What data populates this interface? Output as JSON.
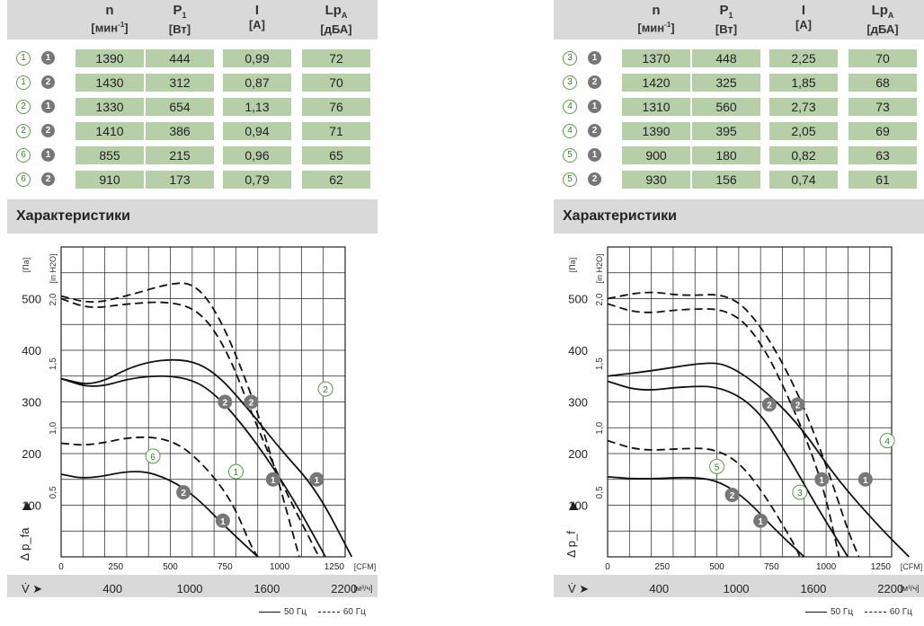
{
  "left": {
    "headers": [
      {
        "main": "n",
        "sub": "",
        "unit": "[мин",
        "unit_sup": "-1",
        "unit_end": "]"
      },
      {
        "main": "P",
        "sub": "1",
        "unit": "[Вт]",
        "unit_sup": "",
        "unit_end": ""
      },
      {
        "main": "I",
        "sub": "",
        "unit": "[A]",
        "unit_sup": "",
        "unit_end": ""
      },
      {
        "main": "Lp",
        "sub": "A",
        "unit": "[дБА]",
        "unit_sup": "",
        "unit_end": ""
      }
    ],
    "rows": [
      {
        "curve": "1",
        "mode": "1",
        "n": "1390",
        "p": "444",
        "i": "0,99",
        "lp": "72"
      },
      {
        "curve": "1",
        "mode": "2",
        "n": "1430",
        "p": "312",
        "i": "0,87",
        "lp": "70"
      },
      {
        "curve": "2",
        "mode": "1",
        "n": "1330",
        "p": "654",
        "i": "1,13",
        "lp": "76"
      },
      {
        "curve": "2",
        "mode": "2",
        "n": "1410",
        "p": "386",
        "i": "0,94",
        "lp": "71"
      },
      {
        "curve": "6",
        "mode": "1",
        "n": "855",
        "p": "215",
        "i": "0,96",
        "lp": "65"
      },
      {
        "curve": "6",
        "mode": "2",
        "n": "910",
        "p": "173",
        "i": "0,79",
        "lp": "62"
      }
    ],
    "section_title": "Характеристики"
  },
  "right": {
    "headers": [
      {
        "main": "n",
        "sub": "",
        "unit": "[мин",
        "unit_sup": "-1",
        "unit_end": "]"
      },
      {
        "main": "P",
        "sub": "1",
        "unit": "[Вт]",
        "unit_sup": "",
        "unit_end": ""
      },
      {
        "main": "I",
        "sub": "",
        "unit": "[A]",
        "unit_sup": "",
        "unit_end": ""
      },
      {
        "main": "Lp",
        "sub": "A",
        "unit": "[дБА]",
        "unit_sup": "",
        "unit_end": ""
      }
    ],
    "rows": [
      {
        "curve": "3",
        "mode": "1",
        "n": "1370",
        "p": "448",
        "i": "2,25",
        "lp": "70"
      },
      {
        "curve": "3",
        "mode": "2",
        "n": "1420",
        "p": "325",
        "i": "1,85",
        "lp": "68"
      },
      {
        "curve": "4",
        "mode": "1",
        "n": "1310",
        "p": "560",
        "i": "2,73",
        "lp": "73"
      },
      {
        "curve": "4",
        "mode": "2",
        "n": "1390",
        "p": "395",
        "i": "2,05",
        "lp": "69"
      },
      {
        "curve": "5",
        "mode": "1",
        "n": "900",
        "p": "180",
        "i": "0,82",
        "lp": "63"
      },
      {
        "curve": "5",
        "mode": "2",
        "n": "930",
        "p": "156",
        "i": "0,74",
        "lp": "61"
      }
    ],
    "section_title": "Характеристики"
  },
  "chart_data": [
    {
      "type": "line",
      "title": "",
      "ylabel": "Δ p_fa",
      "y_units": [
        "[Па]",
        "[in H2O]"
      ],
      "ylim": [
        0,
        600
      ],
      "y_ticks": [
        "100",
        "200",
        "300",
        "400",
        "500"
      ],
      "y2_ticks": [
        "0,5",
        "1,0",
        "1,5",
        "2,0"
      ],
      "x_units": "[CFM]",
      "xlim": [
        0,
        1300
      ],
      "x_ticks": [
        "0",
        "250",
        "500",
        "750",
        "1000",
        "1250"
      ],
      "x2_label": "V̇ ➤",
      "x2_units": "[м³/ч]",
      "x2_ticks": [
        "400",
        "1000",
        "1600",
        "2200"
      ],
      "legend": {
        "solid": "50 Гц",
        "dashed": "60 Гц",
        "placement": "bottom-right"
      },
      "series": [
        {
          "curve": "1",
          "mode": "1",
          "dash": false,
          "points": [
            [
              0,
              345
            ],
            [
              150,
              330
            ],
            [
              350,
              375
            ],
            [
              560,
              385
            ],
            [
              700,
              360
            ],
            [
              850,
              290
            ],
            [
              1000,
              210
            ],
            [
              1170,
              130
            ],
            [
              1330,
              0
            ]
          ]
        },
        {
          "curve": "1",
          "mode": "2",
          "dash": false,
          "points": [
            [
              0,
              345
            ],
            [
              150,
              325
            ],
            [
              350,
              350
            ],
            [
              560,
              350
            ],
            [
              700,
              320
            ],
            [
              880,
              230
            ],
            [
              1060,
              115
            ],
            [
              1210,
              0
            ]
          ]
        },
        {
          "curve": "2",
          "mode": "1",
          "dash": true,
          "points": [
            [
              0,
              500
            ],
            [
              130,
              480
            ],
            [
              300,
              490
            ],
            [
              500,
              495
            ],
            [
              640,
              475
            ],
            [
              760,
              400
            ],
            [
              880,
              270
            ],
            [
              1000,
              150
            ],
            [
              1180,
              0
            ]
          ]
        },
        {
          "curve": "2",
          "mode": "2",
          "dash": true,
          "points": [
            [
              0,
              505
            ],
            [
              140,
              490
            ],
            [
              300,
              505
            ],
            [
              500,
              530
            ],
            [
              610,
              530
            ],
            [
              720,
              470
            ],
            [
              850,
              340
            ],
            [
              960,
              200
            ],
            [
              1090,
              0
            ]
          ]
        },
        {
          "curve": "6",
          "mode": "1",
          "dash": false,
          "points": [
            [
              0,
              160
            ],
            [
              120,
              150
            ],
            [
              350,
              170
            ],
            [
              500,
              150
            ],
            [
              620,
              115
            ],
            [
              760,
              55
            ],
            [
              900,
              0
            ]
          ]
        },
        {
          "curve": "6",
          "mode": "2",
          "dash": true,
          "points": [
            [
              0,
              220
            ],
            [
              130,
              215
            ],
            [
              350,
              235
            ],
            [
              520,
              225
            ],
            [
              650,
              180
            ],
            [
              780,
              110
            ],
            [
              870,
              20
            ],
            [
              900,
              0
            ]
          ]
        }
      ],
      "markers": [
        {
          "kind": "mode",
          "label": "2",
          "x": 750,
          "y": 300
        },
        {
          "kind": "mode",
          "label": "2",
          "x": 870,
          "y": 300
        },
        {
          "kind": "mode",
          "label": "1",
          "x": 970,
          "y": 150
        },
        {
          "kind": "mode",
          "label": "1",
          "x": 1170,
          "y": 150
        },
        {
          "kind": "mode",
          "label": "2",
          "x": 560,
          "y": 125
        },
        {
          "kind": "mode",
          "label": "1",
          "x": 740,
          "y": 70
        },
        {
          "kind": "curve",
          "label": "2",
          "x": 1210,
          "y": 325
        },
        {
          "kind": "curve",
          "label": "1",
          "x": 800,
          "y": 165
        },
        {
          "kind": "curve",
          "label": "6",
          "x": 420,
          "y": 195
        }
      ]
    },
    {
      "type": "line",
      "title": "",
      "ylabel": "Δ p_f",
      "y_units": [
        "[Па]",
        "[in H2O]"
      ],
      "ylim": [
        0,
        600
      ],
      "y_ticks": [
        "100",
        "200",
        "300",
        "400",
        "500"
      ],
      "y2_ticks": [
        "0,5",
        "1,0",
        "1,5",
        "2,0"
      ],
      "x_units": "[CFM]",
      "xlim": [
        0,
        1300
      ],
      "x_ticks": [
        "0",
        "250",
        "500",
        "750",
        "1000",
        "1250"
      ],
      "x2_label": "V̇ ➤",
      "x2_units": "[м³/ч]",
      "x2_ticks": [
        "400",
        "1000",
        "1600",
        "2200"
      ],
      "legend": {
        "solid": "50 Гц",
        "dashed": "60 Гц",
        "placement": "bottom-right"
      },
      "series": [
        {
          "curve": "3",
          "mode": "1",
          "dash": false,
          "points": [
            [
              0,
              350
            ],
            [
              200,
              360
            ],
            [
              420,
              375
            ],
            [
              540,
              375
            ],
            [
              700,
              330
            ],
            [
              880,
              255
            ],
            [
              1050,
              150
            ],
            [
              1250,
              55
            ],
            [
              1380,
              0
            ]
          ]
        },
        {
          "curve": "3",
          "mode": "2",
          "dash": false,
          "points": [
            [
              0,
              340
            ],
            [
              150,
              320
            ],
            [
              350,
              330
            ],
            [
              520,
              330
            ],
            [
              680,
              290
            ],
            [
              820,
              200
            ],
            [
              960,
              95
            ],
            [
              1100,
              0
            ]
          ]
        },
        {
          "curve": "4",
          "mode": "1",
          "dash": true,
          "points": [
            [
              0,
              500
            ],
            [
              180,
              515
            ],
            [
              350,
              505
            ],
            [
              560,
              510
            ],
            [
              700,
              450
            ],
            [
              860,
              330
            ],
            [
              1000,
              180
            ],
            [
              1100,
              50
            ],
            [
              1150,
              0
            ]
          ]
        },
        {
          "curve": "4",
          "mode": "2",
          "dash": true,
          "points": [
            [
              0,
              490
            ],
            [
              150,
              470
            ],
            [
              350,
              480
            ],
            [
              560,
              480
            ],
            [
              700,
              420
            ],
            [
              850,
              290
            ],
            [
              980,
              150
            ],
            [
              1060,
              0
            ]
          ]
        },
        {
          "curve": "5",
          "mode": "1",
          "dash": false,
          "points": [
            [
              0,
              155
            ],
            [
              150,
              150
            ],
            [
              400,
              155
            ],
            [
              520,
              145
            ],
            [
              640,
              110
            ],
            [
              760,
              55
            ],
            [
              900,
              0
            ]
          ]
        },
        {
          "curve": "5",
          "mode": "2",
          "dash": true,
          "points": [
            [
              0,
              225
            ],
            [
              150,
              205
            ],
            [
              350,
              210
            ],
            [
              480,
              210
            ],
            [
              600,
              185
            ],
            [
              720,
              120
            ],
            [
              860,
              20
            ],
            [
              880,
              0
            ]
          ]
        }
      ],
      "markers": [
        {
          "kind": "mode",
          "label": "2",
          "x": 740,
          "y": 295
        },
        {
          "kind": "mode",
          "label": "2",
          "x": 870,
          "y": 295
        },
        {
          "kind": "mode",
          "label": "1",
          "x": 980,
          "y": 150
        },
        {
          "kind": "mode",
          "label": "1",
          "x": 1180,
          "y": 150
        },
        {
          "kind": "mode",
          "label": "2",
          "x": 570,
          "y": 120
        },
        {
          "kind": "mode",
          "label": "1",
          "x": 700,
          "y": 70
        },
        {
          "kind": "curve",
          "label": "4",
          "x": 1280,
          "y": 225
        },
        {
          "kind": "curve",
          "label": "3",
          "x": 880,
          "y": 125
        },
        {
          "kind": "curve",
          "label": "5",
          "x": 500,
          "y": 175
        }
      ]
    }
  ]
}
